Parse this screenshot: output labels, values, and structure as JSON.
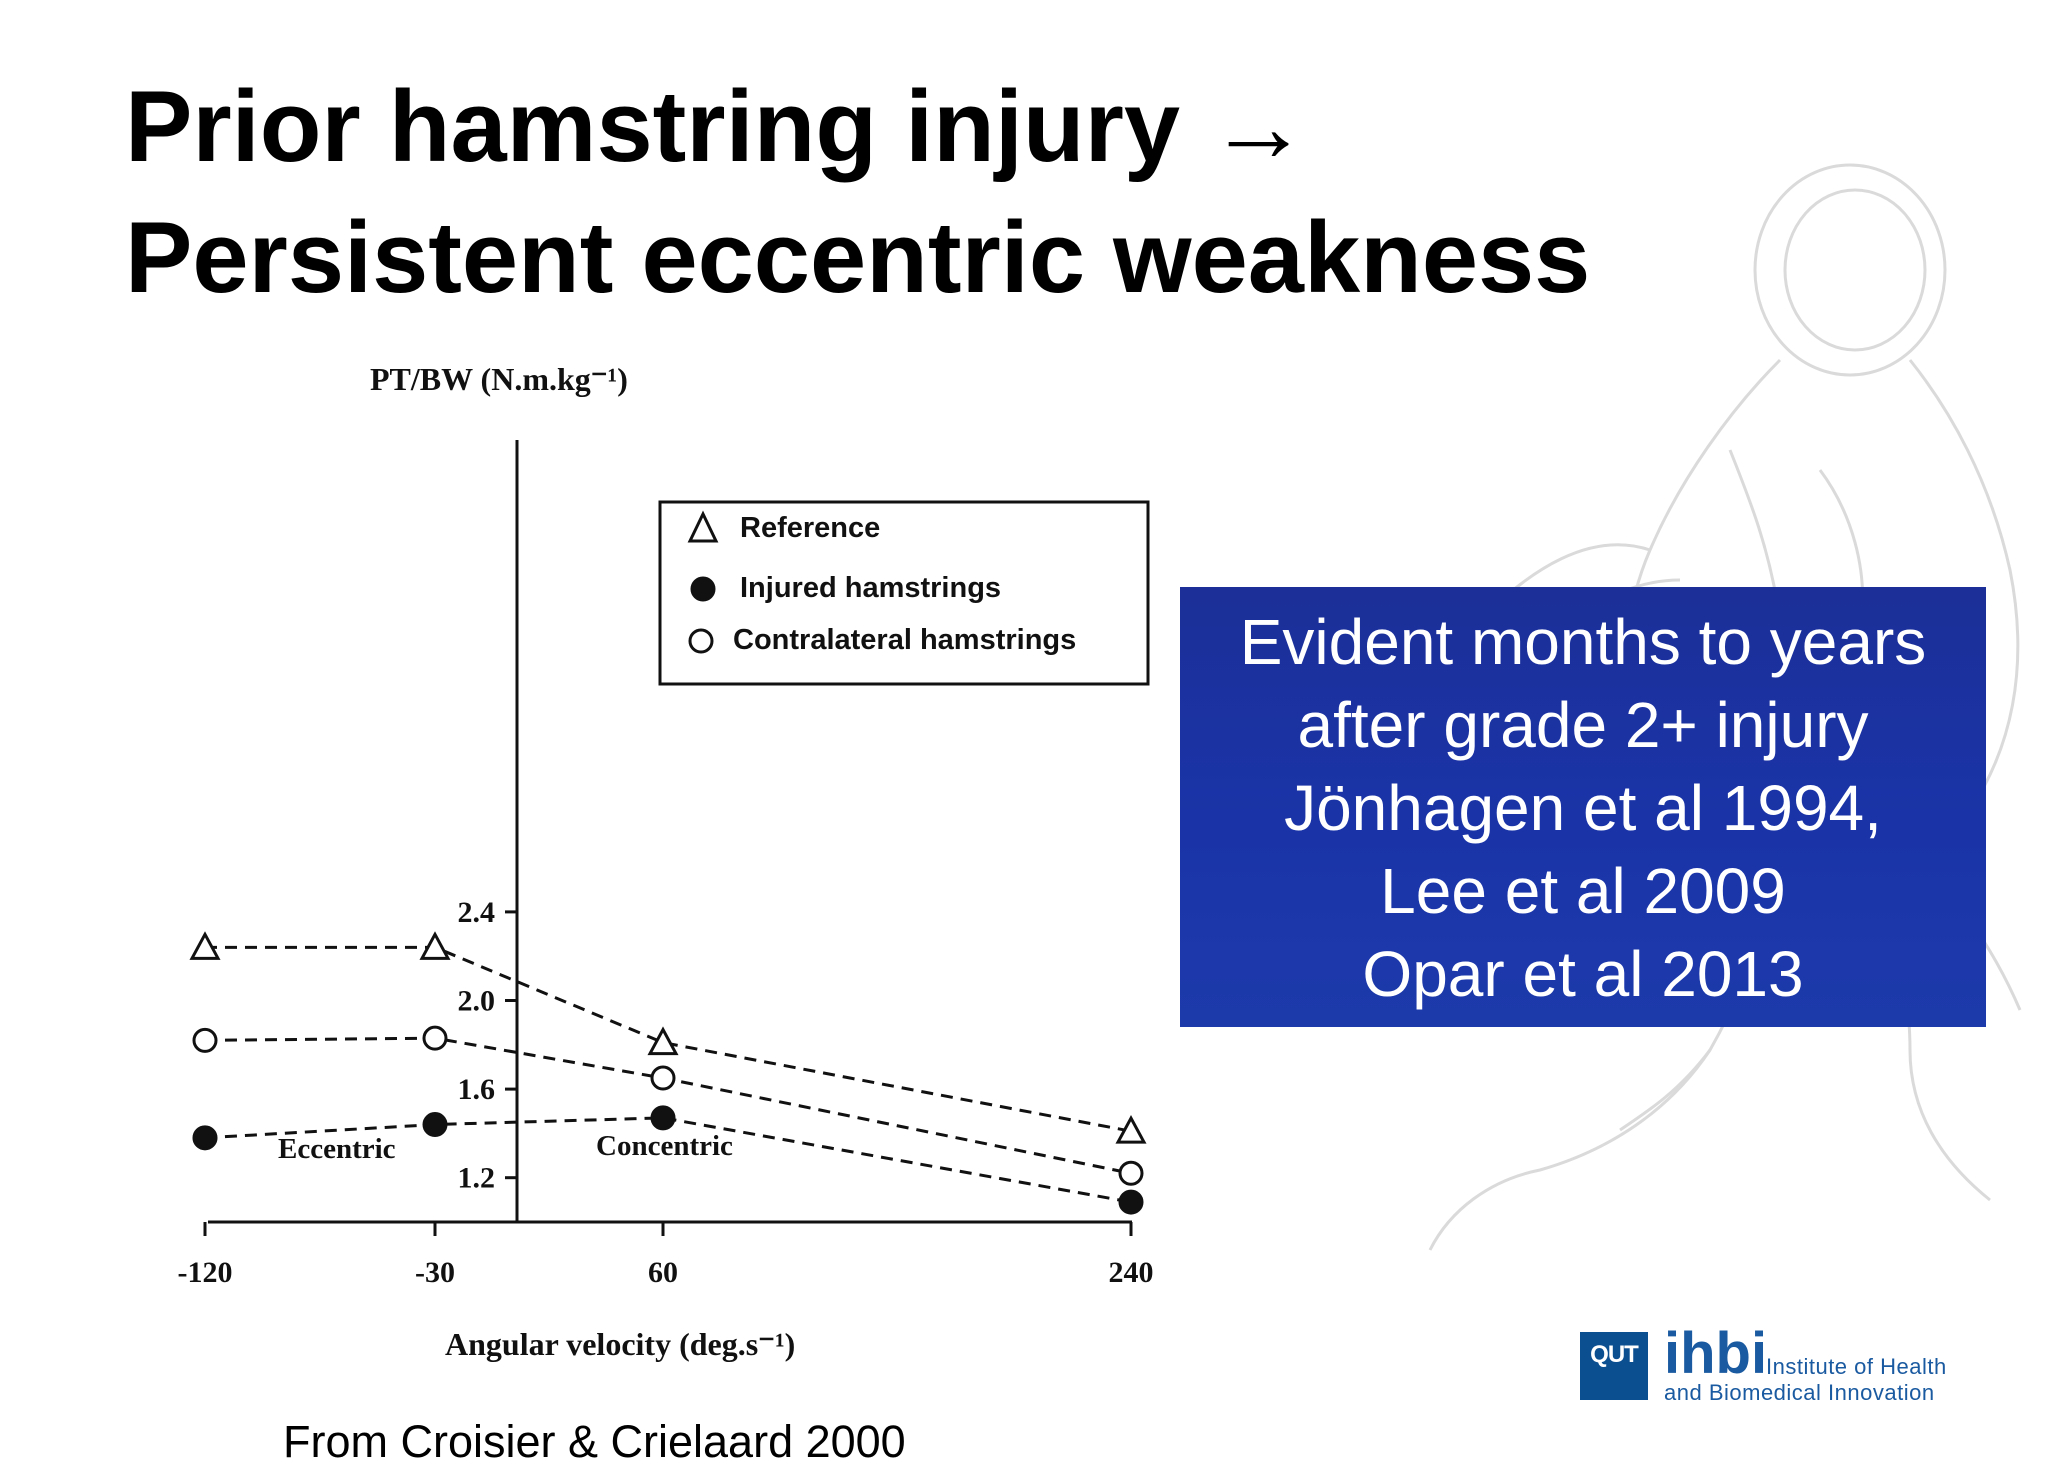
{
  "slide": {
    "title_line1": "Prior hamstring injury →",
    "title_line2": "Persistent eccentric weakness",
    "callout_lines": [
      "Evident months to years",
      "after grade 2+ injury",
      "Jönhagen et al 1994,",
      "Lee et al 2009",
      "Opar et al 2013"
    ],
    "source": "From Croisier & Crielaard 2000",
    "logo": {
      "badge": "QUT",
      "name": "ihbi",
      "line1": "Institute of Health",
      "line2": "and Biomedical Innovation"
    },
    "colors": {
      "callout_bg": "#1c34a6",
      "logo_blue": "#1a5aa0"
    }
  },
  "chart_data": {
    "type": "line",
    "ylabel": "PT/BW (N.m.kg⁻¹)",
    "xlabel": "Angular velocity (deg.s⁻¹)",
    "x": [
      "-120",
      "-30",
      "60",
      "240"
    ],
    "ylim": [
      1.0,
      2.4
    ],
    "yticks": [
      "2.4",
      "2.0",
      "1.6",
      "1.2"
    ],
    "ytick_values": [
      2.4,
      2.0,
      1.6,
      1.2
    ],
    "regions": [
      "Eccentric",
      "Concentric"
    ],
    "legend_placement": "top-right",
    "grid": false,
    "series": [
      {
        "name": "Reference",
        "marker": "triangle-open",
        "values": [
          2.24,
          2.24,
          1.81,
          1.41
        ]
      },
      {
        "name": "Injured hamstrings",
        "marker": "circle-filled",
        "values": [
          1.38,
          1.44,
          1.47,
          1.09
        ]
      },
      {
        "name": "Contralateral hamstrings",
        "marker": "circle-open",
        "values": [
          1.82,
          1.83,
          1.65,
          1.22
        ]
      }
    ]
  }
}
